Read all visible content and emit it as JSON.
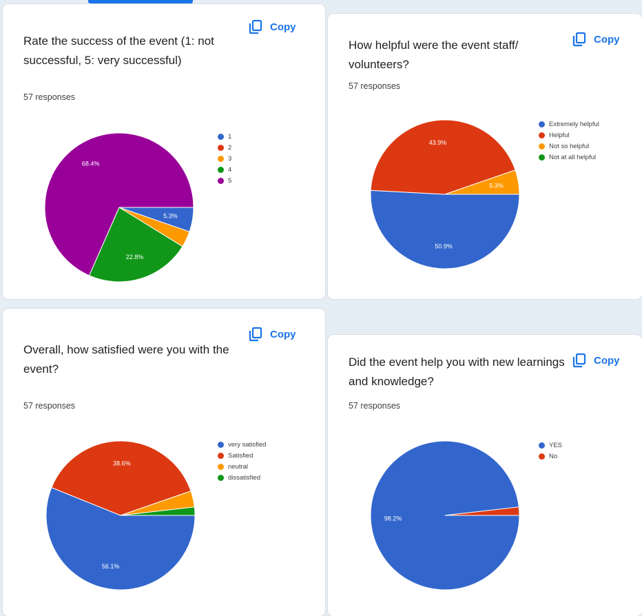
{
  "cards": [
    {
      "title": "Rate the success of the event (1: not successful, 5: very successful)",
      "responses": "57 responses",
      "copy_label": "Copy",
      "copy_icon": "copy-icon"
    },
    {
      "title": "How helpful were the event staff/ volunteers?",
      "responses": "57 responses",
      "copy_label": "Copy",
      "copy_icon": "copy-icon"
    },
    {
      "title": "Overall, how satisfied were you with the event?",
      "responses": "57 responses",
      "copy_label": "Copy",
      "copy_icon": "copy-icon"
    },
    {
      "title": "Did the event help you with new learnings and knowledge?",
      "responses": "57 responses",
      "copy_label": "Copy",
      "copy_icon": "copy-icon"
    }
  ],
  "chart_data": [
    {
      "type": "pie",
      "categories": [
        "1",
        "2",
        "3",
        "4",
        "5"
      ],
      "values": [
        5.3,
        0,
        3.5,
        22.8,
        68.4
      ],
      "labels": [
        "5.3%",
        "",
        "",
        "22.8%",
        "68.4%"
      ],
      "colors": [
        "#3366cc",
        "#dc3912",
        "#ff9900",
        "#109618",
        "#990099"
      ]
    },
    {
      "type": "pie",
      "categories": [
        "Extremely helpful",
        "Helpful",
        "Not so helpful",
        "Not at all helpful"
      ],
      "values": [
        50.9,
        43.9,
        5.3,
        0
      ],
      "labels": [
        "50.9%",
        "43.9%",
        "5.3%",
        ""
      ],
      "colors": [
        "#3366cc",
        "#dc3912",
        "#ff9900",
        "#109618"
      ]
    },
    {
      "type": "pie",
      "categories": [
        "very satisfied",
        "Satisfied",
        "neutral",
        "dissatisfied"
      ],
      "values": [
        56.1,
        38.6,
        3.5,
        1.8
      ],
      "labels": [
        "56.1%",
        "38.6%",
        "",
        ""
      ],
      "colors": [
        "#3366cc",
        "#dc3912",
        "#ff9900",
        "#109618"
      ]
    },
    {
      "type": "pie",
      "categories": [
        "YES",
        "No"
      ],
      "values": [
        98.2,
        1.8
      ],
      "labels": [
        "98.2%",
        ""
      ],
      "colors": [
        "#3366cc",
        "#dc3912"
      ]
    }
  ]
}
